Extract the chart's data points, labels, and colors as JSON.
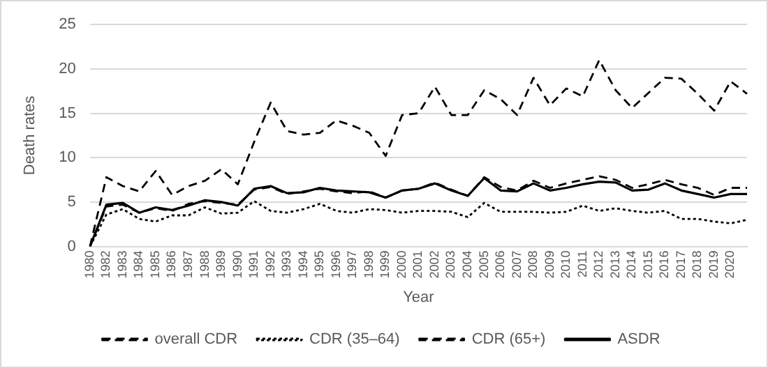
{
  "chart_data": {
    "type": "line",
    "xlabel": "Year",
    "ylabel": "Death rates",
    "categories": [
      "1980",
      "1982",
      "1983",
      "1984",
      "1985",
      "1986",
      "1987",
      "1988",
      "1989",
      "1990",
      "1991",
      "1992",
      "1993",
      "1994",
      "1995",
      "1996",
      "1997",
      "1998",
      "1999",
      "2000",
      "2001",
      "2002",
      "2003",
      "2004",
      "2005",
      "2006",
      "2007",
      "2008",
      "2009",
      "2010",
      "2011",
      "2012",
      "2013",
      "2014",
      "2015",
      "2016",
      "2017",
      "2018",
      "2019",
      "2020",
      null
    ],
    "ylim": [
      0,
      25
    ],
    "yticks": [
      0,
      5,
      10,
      15,
      20,
      25
    ],
    "grid": "y",
    "legend": "bottom",
    "marker": "none",
    "series": [
      {
        "name": "overall CDR",
        "color": "#000000",
        "line_style": "dashed",
        "values": [
          0,
          4.5,
          4.7,
          3.8,
          4.3,
          4.0,
          4.8,
          5.1,
          4.9,
          4.7,
          6.4,
          6.7,
          5.9,
          6.2,
          6.5,
          6.2,
          6.0,
          6.2,
          5.5,
          6.3,
          6.5,
          7.2,
          6.4,
          5.7,
          7.8,
          6.7,
          6.3,
          7.4,
          6.6,
          7.1,
          7.5,
          7.9,
          7.5,
          6.6,
          7.0,
          7.5,
          7.0,
          6.6,
          5.8,
          6.6,
          6.6
        ]
      },
      {
        "name": "CDR (35–64)",
        "color": "#000000",
        "line_style": "dotted",
        "values": [
          0,
          3.6,
          4.2,
          3.1,
          2.8,
          3.5,
          3.5,
          4.4,
          3.7,
          3.8,
          5.1,
          4.0,
          3.8,
          4.2,
          4.8,
          4.0,
          3.8,
          4.2,
          4.1,
          3.8,
          4.0,
          4.0,
          3.9,
          3.3,
          4.9,
          3.9,
          3.9,
          3.9,
          3.8,
          3.9,
          4.6,
          4.0,
          4.3,
          4.0,
          3.8,
          4.0,
          3.1,
          3.1,
          2.8,
          2.6,
          3.0
        ]
      },
      {
        "name": "CDR (65+)",
        "color": "#000000",
        "line_style": "dashed",
        "values": [
          0,
          7.8,
          6.8,
          6.2,
          8.5,
          5.8,
          6.8,
          7.4,
          8.7,
          7.0,
          11.8,
          16.2,
          13.0,
          12.6,
          12.8,
          14.2,
          13.6,
          12.8,
          10.2,
          14.8,
          15.0,
          18.0,
          14.8,
          14.8,
          17.6,
          16.6,
          14.8,
          19.0,
          15.9,
          17.8,
          16.9,
          21.0,
          17.6,
          15.6,
          17.3,
          19.0,
          18.9,
          17.2,
          15.3,
          18.6,
          17.2
        ]
      },
      {
        "name": "ASDR",
        "color": "#000000",
        "line_style": "solid",
        "values": [
          0,
          4.7,
          4.9,
          3.8,
          4.4,
          4.1,
          4.6,
          5.2,
          5.0,
          4.6,
          6.5,
          6.8,
          6.0,
          6.1,
          6.6,
          6.3,
          6.2,
          6.1,
          5.5,
          6.3,
          6.5,
          7.1,
          6.3,
          5.7,
          7.7,
          6.3,
          6.2,
          7.1,
          6.3,
          6.6,
          7.0,
          7.3,
          7.2,
          6.3,
          6.4,
          7.1,
          6.3,
          5.9,
          5.5,
          5.9,
          5.9
        ]
      }
    ]
  }
}
